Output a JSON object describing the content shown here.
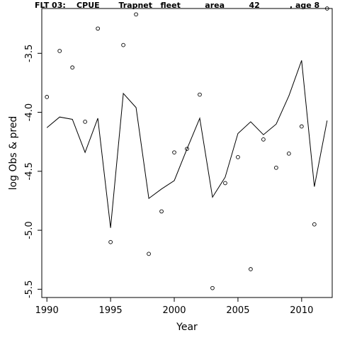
{
  "chart_data": {
    "type": "line",
    "title": "FLT 03:    CPUE       Trapnet   fleet         area         42           , age 8",
    "xlabel": "Year",
    "ylabel": "log Obs & pred",
    "xlim": [
      1989.6,
      2012.4
    ],
    "ylim": [
      -5.57,
      -3.12
    ],
    "x_ticks": [
      1990,
      1995,
      2000,
      2005,
      2010
    ],
    "y_ticks": [
      -3.5,
      -4.0,
      -4.5,
      -5.0,
      -5.5
    ],
    "x_tick_labels": [
      "1990",
      "1995",
      "2000",
      "2005",
      "2010"
    ],
    "y_tick_labels": [
      "-3.5",
      "-4.0",
      "-4.5",
      "-5.0",
      "-5.5"
    ],
    "grid": false,
    "series": [
      {
        "style": "line",
        "x": [
          1990,
          1991,
          1992,
          1993,
          1994,
          1995,
          1996,
          1997,
          1998,
          1999,
          2000,
          2001,
          2002,
          2003,
          2004,
          2005,
          2006,
          2007,
          2008,
          2009,
          2010,
          2011,
          2012
        ],
        "values": [
          -4.13,
          -4.04,
          -4.06,
          -4.34,
          -4.05,
          -4.98,
          -3.84,
          -3.96,
          -4.73,
          -4.65,
          -4.58,
          -4.31,
          -4.05,
          -4.72,
          -4.55,
          -4.18,
          -4.08,
          -4.19,
          -4.1,
          -3.86,
          -3.56,
          -4.63,
          -4.07
        ]
      },
      {
        "style": "points",
        "x": [
          1990,
          1991,
          1992,
          1993,
          1994,
          1995,
          1996,
          1997,
          1998,
          1999,
          2000,
          2001,
          2002,
          2003,
          2004,
          2005,
          2006,
          2007,
          2008,
          2009,
          2010,
          2011,
          2012
        ],
        "values": [
          -3.87,
          -3.48,
          -3.62,
          -4.08,
          -3.29,
          -5.1,
          -3.43,
          -3.17,
          -5.2,
          -4.84,
          -4.34,
          -4.31,
          -3.85,
          -5.49,
          -4.6,
          -4.38,
          -5.33,
          -4.23,
          -4.47,
          -4.35,
          -4.12,
          -4.95,
          -3.12
        ]
      }
    ]
  }
}
